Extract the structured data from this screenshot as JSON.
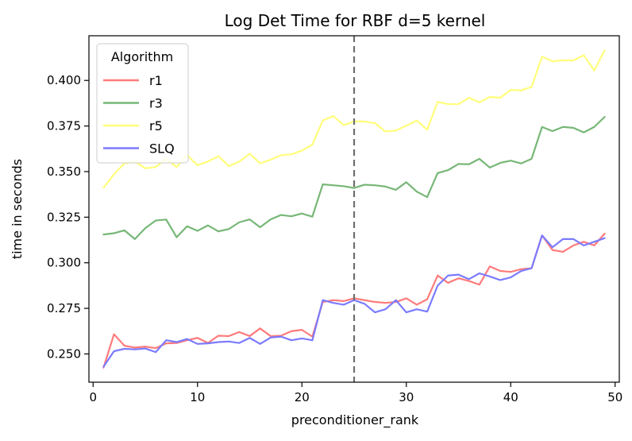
{
  "chart_data": {
    "type": "line",
    "title": "Log Det Time for RBF d=5 kernel",
    "xlabel": "preconditioner_rank",
    "ylabel": "time in seconds",
    "xlim": [
      -0.4,
      50.4
    ],
    "ylim": [
      0.2345,
      0.4245
    ],
    "xticks": [
      0,
      10,
      20,
      30,
      40,
      50
    ],
    "yticks": [
      0.25,
      0.275,
      0.3,
      0.325,
      0.35,
      0.375,
      0.4
    ],
    "ytick_labels": [
      "0.250",
      "0.275",
      "0.300",
      "0.325",
      "0.350",
      "0.375",
      "0.400"
    ],
    "vline": {
      "x": 25,
      "style": "dashed",
      "color": "#6e6e6e"
    },
    "legend": {
      "title": "Algorithm",
      "position": "top-left"
    },
    "grid": false,
    "x": [
      1,
      2,
      3,
      4,
      5,
      6,
      7,
      8,
      9,
      10,
      11,
      12,
      13,
      14,
      15,
      16,
      17,
      18,
      19,
      20,
      21,
      22,
      23,
      24,
      25,
      26,
      27,
      28,
      29,
      30,
      31,
      32,
      33,
      34,
      35,
      36,
      37,
      38,
      39,
      40,
      41,
      42,
      43,
      44,
      45,
      46,
      47,
      48,
      49
    ],
    "series": [
      {
        "name": "r1",
        "color": "#ff7b7b",
        "values": [
          0.2425,
          0.2608,
          0.2545,
          0.2535,
          0.254,
          0.2532,
          0.2558,
          0.256,
          0.2575,
          0.2588,
          0.256,
          0.26,
          0.2598,
          0.262,
          0.2598,
          0.264,
          0.2598,
          0.26,
          0.2625,
          0.2632,
          0.2595,
          0.2785,
          0.2795,
          0.279,
          0.2805,
          0.2795,
          0.2785,
          0.278,
          0.2785,
          0.2805,
          0.277,
          0.28,
          0.293,
          0.289,
          0.2915,
          0.29,
          0.288,
          0.298,
          0.2955,
          0.295,
          0.2965,
          0.297,
          0.315,
          0.307,
          0.306,
          0.3095,
          0.3115,
          0.3095,
          0.316
        ]
      },
      {
        "name": "r3",
        "color": "#77b777",
        "values": [
          0.3155,
          0.3162,
          0.3178,
          0.313,
          0.319,
          0.3232,
          0.3237,
          0.314,
          0.32,
          0.3175,
          0.3205,
          0.3172,
          0.3185,
          0.3222,
          0.3238,
          0.3195,
          0.3238,
          0.3262,
          0.3255,
          0.327,
          0.3253,
          0.343,
          0.3425,
          0.342,
          0.341,
          0.3428,
          0.3425,
          0.3418,
          0.34,
          0.3442,
          0.339,
          0.336,
          0.3492,
          0.3508,
          0.3542,
          0.354,
          0.357,
          0.3522,
          0.3548,
          0.356,
          0.3545,
          0.357,
          0.3745,
          0.3722,
          0.3745,
          0.374,
          0.3715,
          0.3745,
          0.38
        ]
      },
      {
        "name": "r5",
        "color": "#ffff7b",
        "values": [
          0.3412,
          0.3485,
          0.3545,
          0.3555,
          0.3518,
          0.3525,
          0.357,
          0.3525,
          0.359,
          0.3535,
          0.3555,
          0.3585,
          0.353,
          0.3555,
          0.3598,
          0.3545,
          0.3565,
          0.359,
          0.3595,
          0.3615,
          0.3648,
          0.378,
          0.3805,
          0.3755,
          0.3775,
          0.3775,
          0.3765,
          0.372,
          0.3725,
          0.3752,
          0.378,
          0.373,
          0.3882,
          0.387,
          0.387,
          0.3905,
          0.388,
          0.391,
          0.3905,
          0.3948,
          0.3945,
          0.3965,
          0.413,
          0.4105,
          0.411,
          0.411,
          0.4138,
          0.4055,
          0.4165
        ]
      },
      {
        "name": "SLQ",
        "color": "#7b7bff",
        "values": [
          0.243,
          0.2515,
          0.2528,
          0.2525,
          0.253,
          0.251,
          0.2575,
          0.2565,
          0.2582,
          0.2555,
          0.2558,
          0.2565,
          0.2568,
          0.256,
          0.2588,
          0.2555,
          0.259,
          0.2595,
          0.2575,
          0.2585,
          0.2575,
          0.2795,
          0.278,
          0.277,
          0.2795,
          0.2775,
          0.2728,
          0.2745,
          0.2795,
          0.2728,
          0.2745,
          0.2732,
          0.2875,
          0.293,
          0.2935,
          0.291,
          0.2942,
          0.2925,
          0.2905,
          0.292,
          0.2955,
          0.297,
          0.315,
          0.3085,
          0.313,
          0.313,
          0.3095,
          0.3115,
          0.3135
        ]
      }
    ]
  }
}
